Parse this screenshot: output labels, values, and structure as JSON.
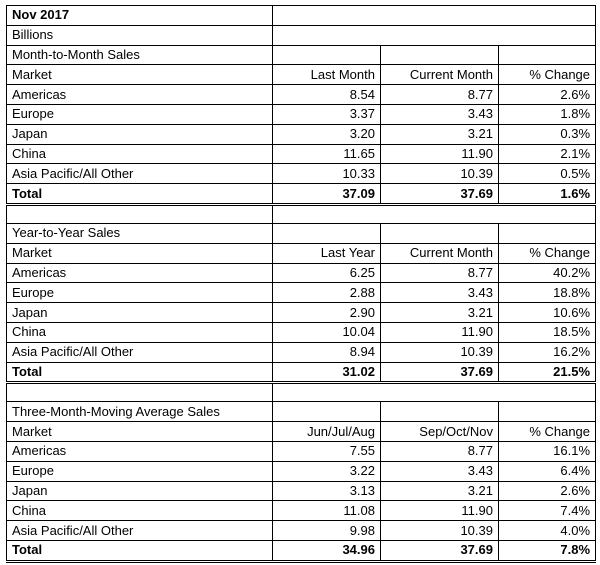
{
  "header": {
    "title": "Nov 2017",
    "units": "Billions"
  },
  "sections": [
    {
      "title": "Month-to-Month Sales",
      "columns": [
        "Market",
        "Last Month",
        "Current Month",
        "% Change"
      ],
      "rows": [
        [
          "Americas",
          "8.54",
          "8.77",
          "2.6%"
        ],
        [
          "Europe",
          "3.37",
          "3.43",
          "1.8%"
        ],
        [
          "Japan",
          "3.20",
          "3.21",
          "0.3%"
        ],
        [
          "China",
          "11.65",
          "11.90",
          "2.1%"
        ],
        [
          "Asia Pacific/All Other",
          "10.33",
          "10.39",
          "0.5%"
        ]
      ],
      "total": [
        "Total",
        "37.09",
        "37.69",
        "1.6%"
      ]
    },
    {
      "title": "Year-to-Year Sales",
      "columns": [
        "Market",
        "Last Year",
        "Current Month",
        "% Change"
      ],
      "rows": [
        [
          "Americas",
          "6.25",
          "8.77",
          "40.2%"
        ],
        [
          "Europe",
          "2.88",
          "3.43",
          "18.8%"
        ],
        [
          "Japan",
          "2.90",
          "3.21",
          "10.6%"
        ],
        [
          "China",
          "10.04",
          "11.90",
          "18.5%"
        ],
        [
          "Asia Pacific/All Other",
          "8.94",
          "10.39",
          "16.2%"
        ]
      ],
      "total": [
        "Total",
        "31.02",
        "37.69",
        "21.5%"
      ]
    },
    {
      "title": "Three-Month-Moving Average Sales",
      "columns": [
        "Market",
        "Jun/Jul/Aug",
        "Sep/Oct/Nov",
        "% Change"
      ],
      "rows": [
        [
          "Americas",
          "7.55",
          "8.77",
          "16.1%"
        ],
        [
          "Europe",
          "3.22",
          "3.43",
          "6.4%"
        ],
        [
          "Japan",
          "3.13",
          "3.21",
          "2.6%"
        ],
        [
          "China",
          "11.08",
          "11.90",
          "7.4%"
        ],
        [
          "Asia Pacific/All Other",
          "9.98",
          "10.39",
          "4.0%"
        ]
      ],
      "total": [
        "Total",
        "34.96",
        "37.69",
        "7.8%"
      ]
    }
  ]
}
